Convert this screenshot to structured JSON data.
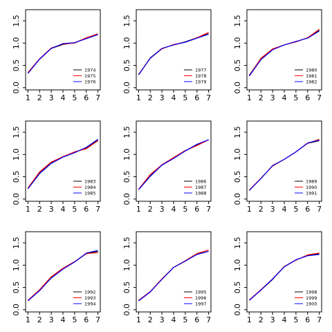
{
  "chart_data": [
    {
      "type": "line",
      "x": [
        1,
        2,
        3,
        4,
        5,
        6,
        7
      ],
      "xlim": [
        0.8,
        7.2
      ],
      "ylim": [
        -0.05,
        1.75
      ],
      "x_ticks": [
        1,
        2,
        3,
        4,
        5,
        6,
        7
      ],
      "y_ticks": [
        0.0,
        0.5,
        1.0,
        1.5
      ],
      "x_tick_labels": [
        "1",
        "2",
        "3",
        "4",
        "5",
        "6",
        "7"
      ],
      "y_tick_labels": [
        "0.0",
        "0.5",
        "1.0",
        "1.5"
      ],
      "grid": false,
      "legend_position": "bottom-right",
      "series": [
        {
          "name": "1974",
          "color": "#000000",
          "values": [
            0.33,
            0.64,
            0.88,
            0.97,
            1.01,
            1.11,
            1.2
          ]
        },
        {
          "name": "1975",
          "color": "#ff0000",
          "values": [
            0.34,
            0.65,
            0.89,
            0.98,
            1.0,
            1.12,
            1.21
          ]
        },
        {
          "name": "1976",
          "color": "#0000ff",
          "values": [
            0.32,
            0.64,
            0.88,
            0.99,
            1.01,
            1.1,
            1.19
          ]
        }
      ]
    },
    {
      "type": "line",
      "x": [
        1,
        2,
        3,
        4,
        5,
        6,
        7
      ],
      "xlim": [
        0.8,
        7.2
      ],
      "ylim": [
        -0.05,
        1.75
      ],
      "x_ticks": [
        1,
        2,
        3,
        4,
        5,
        6,
        7
      ],
      "y_ticks": [
        0.0,
        0.5,
        1.0,
        1.5
      ],
      "x_tick_labels": [
        "1",
        "2",
        "3",
        "4",
        "5",
        "6",
        "7"
      ],
      "y_tick_labels": [
        "0.0",
        "0.5",
        "1.0",
        "1.5"
      ],
      "grid": false,
      "legend_position": "bottom-right",
      "series": [
        {
          "name": "1977",
          "color": "#000000",
          "values": [
            0.29,
            0.67,
            0.88,
            0.96,
            1.03,
            1.12,
            1.21
          ]
        },
        {
          "name": "1978",
          "color": "#ff0000",
          "values": [
            0.3,
            0.66,
            0.87,
            0.97,
            1.02,
            1.12,
            1.24
          ]
        },
        {
          "name": "1979",
          "color": "#0000ff",
          "values": [
            0.29,
            0.66,
            0.88,
            0.96,
            1.02,
            1.11,
            1.2
          ]
        }
      ]
    },
    {
      "type": "line",
      "x": [
        1,
        2,
        3,
        4,
        5,
        6,
        7
      ],
      "xlim": [
        0.8,
        7.2
      ],
      "ylim": [
        -0.05,
        1.75
      ],
      "x_ticks": [
        1,
        2,
        3,
        4,
        5,
        6,
        7
      ],
      "y_ticks": [
        0.0,
        0.5,
        1.0,
        1.5
      ],
      "x_tick_labels": [
        "1",
        "2",
        "3",
        "4",
        "5",
        "6",
        "7"
      ],
      "y_tick_labels": [
        "0.0",
        "0.5",
        "1.0",
        "1.5"
      ],
      "grid": false,
      "legend_position": "bottom-right",
      "series": [
        {
          "name": "1980",
          "color": "#000000",
          "values": [
            0.28,
            0.65,
            0.86,
            0.96,
            1.03,
            1.12,
            1.29
          ]
        },
        {
          "name": "1981",
          "color": "#ff0000",
          "values": [
            0.27,
            0.66,
            0.87,
            0.96,
            1.03,
            1.12,
            1.31
          ]
        },
        {
          "name": "1982",
          "color": "#0000ff",
          "values": [
            0.26,
            0.63,
            0.85,
            0.96,
            1.04,
            1.11,
            1.27
          ]
        }
      ]
    },
    {
      "type": "line",
      "x": [
        1,
        2,
        3,
        4,
        5,
        6,
        7
      ],
      "xlim": [
        0.8,
        7.2
      ],
      "ylim": [
        -0.05,
        1.75
      ],
      "x_ticks": [
        1,
        2,
        3,
        4,
        5,
        6,
        7
      ],
      "y_ticks": [
        0.0,
        0.5,
        1.0,
        1.5
      ],
      "x_tick_labels": [
        "1",
        "2",
        "3",
        "4",
        "5",
        "6",
        "7"
      ],
      "y_tick_labels": [
        "0.0",
        "0.5",
        "1.0",
        "1.5"
      ],
      "grid": false,
      "legend_position": "bottom-right",
      "series": [
        {
          "name": "1983",
          "color": "#000000",
          "values": [
            0.24,
            0.6,
            0.82,
            0.95,
            1.05,
            1.15,
            1.33
          ]
        },
        {
          "name": "1984",
          "color": "#ff0000",
          "values": [
            0.25,
            0.61,
            0.83,
            0.95,
            1.06,
            1.13,
            1.31
          ]
        },
        {
          "name": "1985",
          "color": "#0000ff",
          "values": [
            0.23,
            0.57,
            0.8,
            0.94,
            1.04,
            1.16,
            1.34
          ]
        }
      ]
    },
    {
      "type": "line",
      "x": [
        1,
        2,
        3,
        4,
        5,
        6,
        7
      ],
      "xlim": [
        0.8,
        7.2
      ],
      "ylim": [
        -0.05,
        1.75
      ],
      "x_ticks": [
        1,
        2,
        3,
        4,
        5,
        6,
        7
      ],
      "y_ticks": [
        0.0,
        0.5,
        1.0,
        1.5
      ],
      "x_tick_labels": [
        "1",
        "2",
        "3",
        "4",
        "5",
        "6",
        "7"
      ],
      "y_tick_labels": [
        "0.0",
        "0.5",
        "1.0",
        "1.5"
      ],
      "grid": false,
      "legend_position": "bottom-right",
      "series": [
        {
          "name": "1986",
          "color": "#000000",
          "values": [
            0.21,
            0.52,
            0.77,
            0.92,
            1.08,
            1.21,
            1.33
          ]
        },
        {
          "name": "1987",
          "color": "#ff0000",
          "values": [
            0.22,
            0.55,
            0.77,
            0.93,
            1.09,
            1.2,
            1.33
          ]
        },
        {
          "name": "1988",
          "color": "#0000ff",
          "values": [
            0.21,
            0.51,
            0.76,
            0.91,
            1.08,
            1.23,
            1.33
          ]
        }
      ]
    },
    {
      "type": "line",
      "x": [
        1,
        2,
        3,
        4,
        5,
        6,
        7
      ],
      "xlim": [
        0.8,
        7.2
      ],
      "ylim": [
        -0.05,
        1.75
      ],
      "x_ticks": [
        1,
        2,
        3,
        4,
        5,
        6,
        7
      ],
      "y_ticks": [
        0.0,
        0.5,
        1.0,
        1.5
      ],
      "x_tick_labels": [
        "1",
        "2",
        "3",
        "4",
        "5",
        "6",
        "7"
      ],
      "y_tick_labels": [
        "0.0",
        "0.5",
        "1.0",
        "1.5"
      ],
      "grid": false,
      "legend_position": "bottom-right",
      "series": [
        {
          "name": "1989",
          "color": "#000000",
          "values": [
            0.2,
            0.46,
            0.75,
            0.89,
            1.06,
            1.25,
            1.31
          ]
        },
        {
          "name": "1990",
          "color": "#ff0000",
          "values": [
            0.2,
            0.47,
            0.74,
            0.89,
            1.06,
            1.25,
            1.34
          ]
        },
        {
          "name": "1991",
          "color": "#0000ff",
          "values": [
            0.19,
            0.46,
            0.75,
            0.89,
            1.06,
            1.26,
            1.32
          ]
        }
      ]
    },
    {
      "type": "line",
      "x": [
        1,
        2,
        3,
        4,
        5,
        6,
        7
      ],
      "xlim": [
        0.8,
        7.2
      ],
      "ylim": [
        -0.05,
        1.75
      ],
      "x_ticks": [
        1,
        2,
        3,
        4,
        5,
        6,
        7
      ],
      "y_ticks": [
        0.0,
        0.5,
        1.0,
        1.5
      ],
      "x_tick_labels": [
        "1",
        "2",
        "3",
        "4",
        "5",
        "6",
        "7"
      ],
      "y_tick_labels": [
        "0.0",
        "0.5",
        "1.0",
        "1.5"
      ],
      "grid": false,
      "legend_position": "bottom-right",
      "series": [
        {
          "name": "1992",
          "color": "#000000",
          "values": [
            0.2,
            0.43,
            0.72,
            0.92,
            1.07,
            1.26,
            1.31
          ]
        },
        {
          "name": "1993",
          "color": "#ff0000",
          "values": [
            0.21,
            0.45,
            0.74,
            0.93,
            1.08,
            1.26,
            1.28
          ]
        },
        {
          "name": "1994",
          "color": "#0000ff",
          "values": [
            0.2,
            0.43,
            0.71,
            0.91,
            1.07,
            1.27,
            1.33
          ]
        }
      ]
    },
    {
      "type": "line",
      "x": [
        1,
        2,
        3,
        4,
        5,
        6,
        7
      ],
      "xlim": [
        0.8,
        7.2
      ],
      "ylim": [
        -0.05,
        1.75
      ],
      "x_ticks": [
        1,
        2,
        3,
        4,
        5,
        6,
        7
      ],
      "y_ticks": [
        0.0,
        0.5,
        1.0,
        1.5
      ],
      "x_tick_labels": [
        "1",
        "2",
        "3",
        "4",
        "5",
        "6",
        "7"
      ],
      "y_tick_labels": [
        "0.0",
        "0.5",
        "1.0",
        "1.5"
      ],
      "grid": false,
      "legend_position": "bottom-right",
      "series": [
        {
          "name": "1995",
          "color": "#000000",
          "values": [
            0.2,
            0.4,
            0.69,
            0.95,
            1.09,
            1.25,
            1.31
          ]
        },
        {
          "name": "1996",
          "color": "#ff0000",
          "values": [
            0.21,
            0.41,
            0.69,
            0.95,
            1.1,
            1.26,
            1.34
          ]
        },
        {
          "name": "1997",
          "color": "#0000ff",
          "values": [
            0.2,
            0.4,
            0.68,
            0.95,
            1.09,
            1.24,
            1.31
          ]
        }
      ]
    },
    {
      "type": "line",
      "x": [
        1,
        2,
        3,
        4,
        5,
        6,
        7
      ],
      "xlim": [
        0.8,
        7.2
      ],
      "ylim": [
        -0.05,
        1.75
      ],
      "x_ticks": [
        1,
        2,
        3,
        4,
        5,
        6,
        7
      ],
      "y_ticks": [
        0.0,
        0.5,
        1.0,
        1.5
      ],
      "x_tick_labels": [
        "1",
        "2",
        "3",
        "4",
        "5",
        "6",
        "7"
      ],
      "y_tick_labels": [
        "0.0",
        "0.5",
        "1.0",
        "1.5"
      ],
      "grid": false,
      "legend_position": "bottom-right",
      "series": [
        {
          "name": "1998",
          "color": "#000000",
          "values": [
            0.21,
            0.44,
            0.68,
            0.97,
            1.12,
            1.22,
            1.26
          ]
        },
        {
          "name": "1999",
          "color": "#ff0000",
          "values": [
            0.22,
            0.45,
            0.69,
            0.97,
            1.11,
            1.23,
            1.27
          ]
        },
        {
          "name": "1900",
          "color": "#0000ff",
          "values": [
            0.21,
            0.44,
            0.69,
            0.96,
            1.12,
            1.21,
            1.24
          ]
        }
      ]
    }
  ]
}
